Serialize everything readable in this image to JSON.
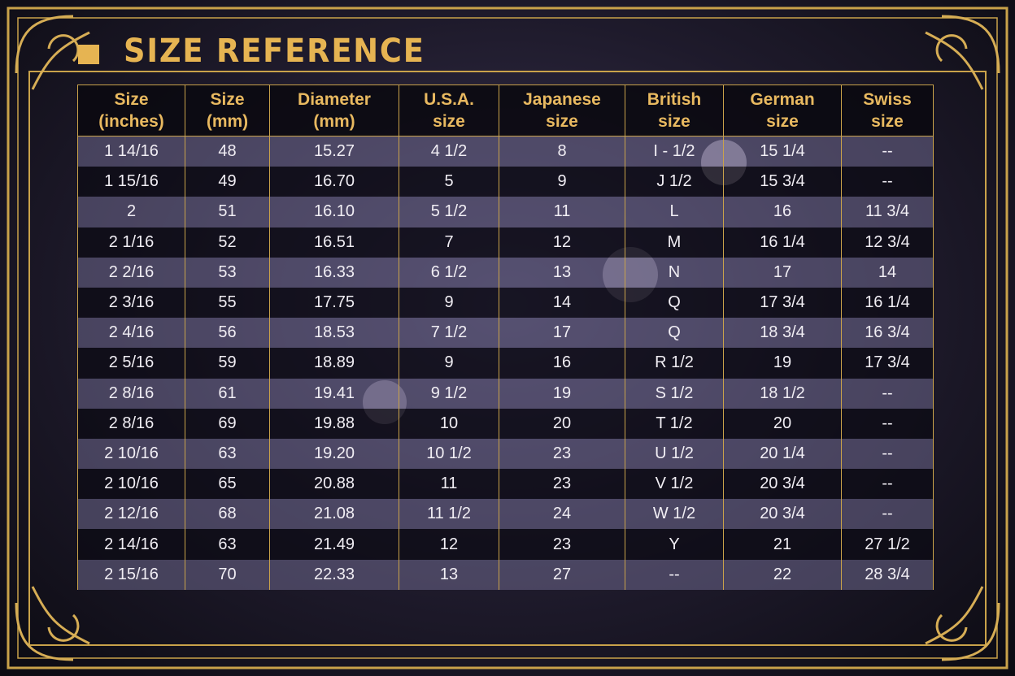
{
  "header": {
    "title": "SIZE REFERENCE"
  },
  "table": {
    "columns": [
      "Size\n(inches)",
      "Size\n(mm)",
      "Diameter\n(mm)",
      "U.S.A.\nsize",
      "Japanese\nsize",
      "British\nsize",
      "German\nsize",
      "Swiss\nsize"
    ],
    "rows": [
      [
        "1 14/16",
        "48",
        "15.27",
        "4 1/2",
        "8",
        "I - 1/2",
        "15 1/4",
        "--"
      ],
      [
        "1 15/16",
        "49",
        "16.70",
        "5",
        "9",
        "J 1/2",
        "15 3/4",
        "--"
      ],
      [
        "2",
        "51",
        "16.10",
        "5 1/2",
        "11",
        "L",
        "16",
        "11 3/4"
      ],
      [
        "2 1/16",
        "52",
        "16.51",
        "7",
        "12",
        "M",
        "16 1/4",
        "12 3/4"
      ],
      [
        "2 2/16",
        "53",
        "16.33",
        "6 1/2",
        "13",
        "N",
        "17",
        "14"
      ],
      [
        "2 3/16",
        "55",
        "17.75",
        "9",
        "14",
        "Q",
        "17 3/4",
        "16 1/4"
      ],
      [
        "2 4/16",
        "56",
        "18.53",
        "7 1/2",
        "17",
        "Q",
        "18 3/4",
        "16 3/4"
      ],
      [
        "2 5/16",
        "59",
        "18.89",
        "9",
        "16",
        "R 1/2",
        "19",
        "17 3/4"
      ],
      [
        "2 8/16",
        "61",
        "19.41",
        "9 1/2",
        "19",
        "S 1/2",
        "18 1/2",
        "--"
      ],
      [
        "2 8/16",
        "69",
        "19.88",
        "10",
        "20",
        "T 1/2",
        "20",
        "--"
      ],
      [
        "2 10/16",
        "63",
        "19.20",
        "10 1/2",
        "23",
        "U 1/2",
        "20 1/4",
        "--"
      ],
      [
        "2 10/16",
        "65",
        "20.88",
        "11",
        "23",
        "V 1/2",
        "20 3/4",
        "--"
      ],
      [
        "2 12/16",
        "68",
        "21.08",
        "11 1/2",
        "24",
        "W 1/2",
        "20 3/4",
        "--"
      ],
      [
        "2 14/16",
        "63",
        "21.49",
        "12",
        "23",
        "Y",
        "21",
        "27 1/2"
      ],
      [
        "2 15/16",
        "70",
        "22.33",
        "13",
        "27",
        "--",
        "22",
        "28 3/4"
      ]
    ]
  }
}
